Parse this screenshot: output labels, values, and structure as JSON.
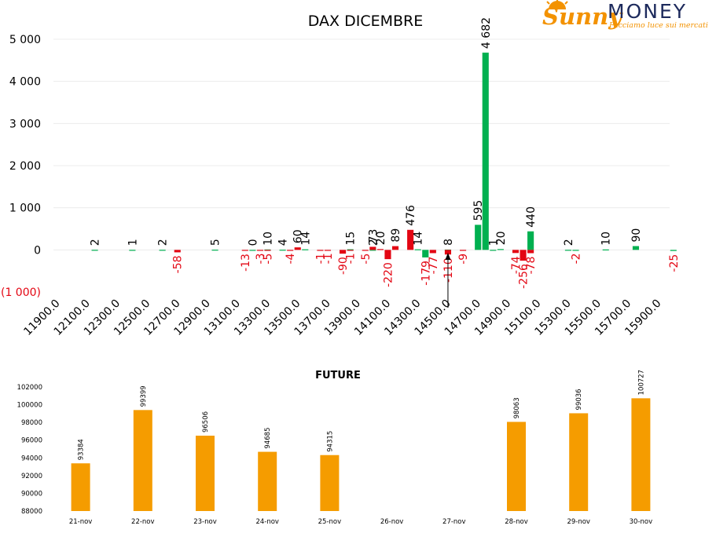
{
  "logo": {
    "brand_a": "Sunny",
    "brand_b": "MONEY",
    "tagline": "Facciamo luce sui mercati",
    "color_a": "#f39200",
    "color_b": "#1d2a5c"
  },
  "colors": {
    "call": "#00b050",
    "put": "#e30613",
    "future": "#f59c00",
    "negative_text": "#e30613"
  },
  "chart_data": [
    {
      "type": "bar",
      "title": "DAX DICEMBRE",
      "xlabel": "",
      "ylabel": "",
      "ylim": [
        -1000,
        5000
      ],
      "yticks": [
        -1000,
        0,
        1000,
        2000,
        3000,
        4000,
        5000
      ],
      "ytick_labels": [
        "(1 000)",
        "0",
        "1 000",
        "2 000",
        "3 000",
        "4 000",
        "5 000"
      ],
      "strike_step": 50,
      "x_tick_labels": [
        "11900.0",
        "12100.0",
        "12300.0",
        "12500.0",
        "12700.0",
        "12900.0",
        "13100.0",
        "13300.0",
        "13500.0",
        "13700.0",
        "13900.0",
        "14100.0",
        "14300.0",
        "14500.0",
        "14700.0",
        "14900.0",
        "15100.0",
        "15300.0",
        "15500.0",
        "15700.0",
        "15900.0"
      ],
      "grid": true,
      "legend": "none",
      "annotation": "arrow at 14500.0",
      "series": [
        {
          "points": [
            {
              "x": 12150,
              "y": 2
            },
            {
              "x": 12400,
              "y": 1
            },
            {
              "x": 12600,
              "y": 2
            },
            {
              "x": 12950,
              "y": 5
            },
            {
              "x": 13200,
              "y": 0
            },
            {
              "x": 13300,
              "y": 10
            },
            {
              "x": 13400,
              "y": 4
            },
            {
              "x": 13550,
              "y": 14
            },
            {
              "x": 13850,
              "y": 15
            },
            {
              "x": 14000,
              "y": 2
            },
            {
              "x": 14300,
              "y": 14
            },
            {
              "x": 14350,
              "y": -179
            },
            {
              "x": 14500,
              "y": 8
            },
            {
              "x": 14700,
              "y": 595
            },
            {
              "x": 14750,
              "y": 4682
            },
            {
              "x": 14800,
              "y": 1
            },
            {
              "x": 14850,
              "y": 20
            },
            {
              "x": 15050,
              "y": 440
            },
            {
              "x": 15300,
              "y": 2
            },
            {
              "x": 15350,
              "y": -2
            },
            {
              "x": 15550,
              "y": 10
            },
            {
              "x": 15750,
              "y": 90
            },
            {
              "x": 16000,
              "y": -25
            }
          ]
        },
        {
          "points": [
            {
              "x": 12700,
              "y": -58
            },
            {
              "x": 13150,
              "y": -13
            },
            {
              "x": 13250,
              "y": -3
            },
            {
              "x": 13300,
              "y": -5
            },
            {
              "x": 13450,
              "y": -4
            },
            {
              "x": 13500,
              "y": 60
            },
            {
              "x": 13650,
              "y": -1
            },
            {
              "x": 13700,
              "y": -1
            },
            {
              "x": 13800,
              "y": -90
            },
            {
              "x": 13850,
              "y": -1
            },
            {
              "x": 13950,
              "y": -5
            },
            {
              "x": 14000,
              "y": 73
            },
            {
              "x": 14050,
              "y": 20
            },
            {
              "x": 14100,
              "y": -220
            },
            {
              "x": 14150,
              "y": 89
            },
            {
              "x": 14250,
              "y": 476
            },
            {
              "x": 14400,
              "y": -77
            },
            {
              "x": 14500,
              "y": -110
            },
            {
              "x": 14600,
              "y": -9
            },
            {
              "x": 14950,
              "y": -74
            },
            {
              "x": 15000,
              "y": -256
            },
            {
              "x": 15050,
              "y": -78
            }
          ]
        }
      ]
    },
    {
      "type": "bar",
      "title": "FUTURE",
      "xlabel": "",
      "ylabel": "",
      "ylim": [
        88000,
        102000
      ],
      "yticks": [
        88000,
        90000,
        92000,
        94000,
        96000,
        98000,
        100000,
        102000
      ],
      "grid": false,
      "legend": "none",
      "categories": [
        "21-nov",
        "22-nov",
        "23-nov",
        "24-nov",
        "25-nov",
        "26-nov",
        "27-nov",
        "28-nov",
        "29-nov",
        "30-nov"
      ],
      "values": [
        93384,
        99399,
        96506,
        94685,
        94315,
        null,
        null,
        98063,
        99036,
        100727
      ]
    }
  ]
}
